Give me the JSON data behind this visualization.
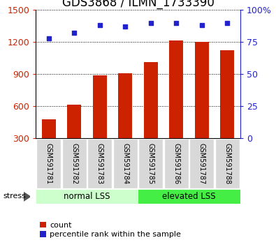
{
  "title": "GDS3868 / ILMN_1733390",
  "categories": [
    "GSM591781",
    "GSM591782",
    "GSM591783",
    "GSM591784",
    "GSM591785",
    "GSM591786",
    "GSM591787",
    "GSM591788"
  ],
  "bar_values": [
    480,
    615,
    890,
    910,
    1010,
    1215,
    1200,
    1120
  ],
  "percentile_values": [
    78,
    82,
    88,
    87,
    90,
    90,
    88,
    90
  ],
  "bar_color": "#cc2200",
  "dot_color": "#2222cc",
  "ylim_left": [
    300,
    1500
  ],
  "ylim_right": [
    0,
    100
  ],
  "yticks_left": [
    300,
    600,
    900,
    1200,
    1500
  ],
  "yticks_right": [
    0,
    25,
    50,
    75,
    100
  ],
  "group1_label": "normal LSS",
  "group2_label": "elevated LSS",
  "group1_count": 4,
  "group2_count": 4,
  "stress_label": "stress",
  "legend_count_label": "count",
  "legend_pct_label": "percentile rank within the sample",
  "bg_label_normal": "#ccffcc",
  "bg_label_elevated": "#44ee44",
  "title_fontsize": 12,
  "tick_fontsize": 9
}
